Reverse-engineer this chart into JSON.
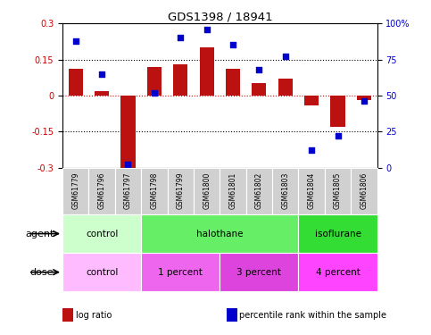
{
  "title": "GDS1398 / 18941",
  "samples": [
    "GSM61779",
    "GSM61796",
    "GSM61797",
    "GSM61798",
    "GSM61799",
    "GSM61800",
    "GSM61801",
    "GSM61802",
    "GSM61803",
    "GSM61804",
    "GSM61805",
    "GSM61806"
  ],
  "log_ratio": [
    0.11,
    0.02,
    -0.3,
    0.12,
    0.13,
    0.2,
    0.11,
    0.05,
    0.07,
    -0.04,
    -0.13,
    -0.02
  ],
  "percentile": [
    88,
    65,
    2,
    52,
    90,
    96,
    85,
    68,
    77,
    12,
    22,
    46
  ],
  "bar_color": "#bb1111",
  "dot_color": "#0000cc",
  "ylim_left": [
    -0.3,
    0.3
  ],
  "ylim_right": [
    0,
    100
  ],
  "yticks_left": [
    -0.3,
    -0.15,
    0.0,
    0.15,
    0.3
  ],
  "yticks_right": [
    0,
    25,
    50,
    75,
    100
  ],
  "ytick_labels_left": [
    "-0.3",
    "-0.15",
    "0",
    "0.15",
    "0.3"
  ],
  "ytick_labels_right": [
    "0",
    "25",
    "50",
    "75",
    "100%"
  ],
  "agent_groups": [
    {
      "label": "control",
      "start": 0,
      "end": 3,
      "color": "#ccffcc"
    },
    {
      "label": "halothane",
      "start": 3,
      "end": 9,
      "color": "#66ee66"
    },
    {
      "label": "isoflurane",
      "start": 9,
      "end": 12,
      "color": "#33dd33"
    }
  ],
  "dose_groups": [
    {
      "label": "control",
      "start": 0,
      "end": 3,
      "color": "#ffbbff"
    },
    {
      "label": "1 percent",
      "start": 3,
      "end": 6,
      "color": "#ee66ee"
    },
    {
      "label": "3 percent",
      "start": 6,
      "end": 9,
      "color": "#dd44dd"
    },
    {
      "label": "4 percent",
      "start": 9,
      "end": 12,
      "color": "#ff44ff"
    }
  ],
  "legend_items": [
    {
      "label": "log ratio",
      "color": "#bb1111"
    },
    {
      "label": "percentile rank within the sample",
      "color": "#0000cc"
    }
  ],
  "sample_bg": "#d0d0d0",
  "agent_label": "agent",
  "dose_label": "dose"
}
